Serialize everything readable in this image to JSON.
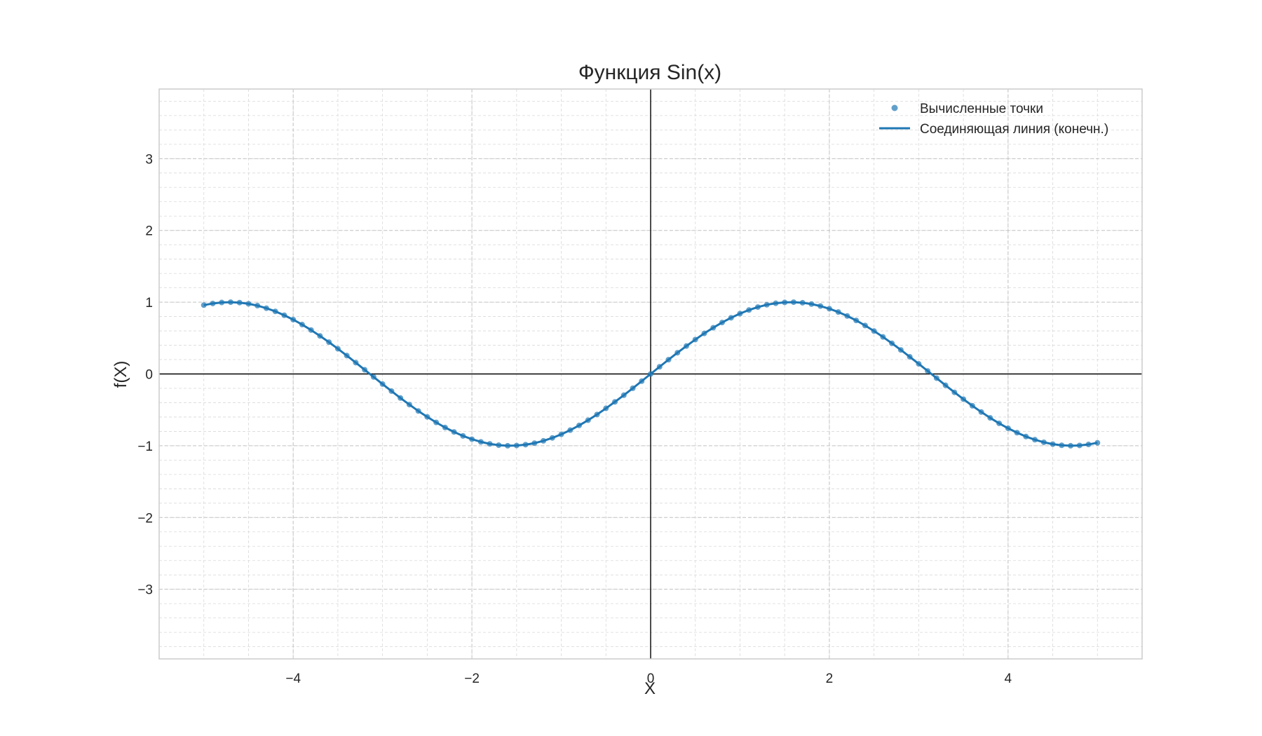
{
  "chart_data": {
    "type": "line",
    "title": "Функция Sin(x)",
    "xlabel": "X",
    "ylabel": "f(X)",
    "xlim": [
      -5.5,
      5.5
    ],
    "ylim": [
      -3.97,
      3.97
    ],
    "xticks": [
      -4,
      -2,
      0,
      2,
      4
    ],
    "xtick_labels": [
      "−4",
      "−2",
      "0",
      "2",
      "4"
    ],
    "yticks": [
      -3,
      -2,
      -1,
      0,
      1,
      2,
      3
    ],
    "ytick_labels": [
      "−3",
      "−2",
      "−1",
      "0",
      "1",
      "2",
      "3"
    ],
    "minor_grid": true,
    "major_grid": true,
    "axes_lines_at_zero": true,
    "legend_position": "top-right",
    "colors": {
      "series": "#1f77b4",
      "axes_zero": "#000000",
      "grid": "#cccccc"
    },
    "series": [
      {
        "name": "Вычисленные точки",
        "kind": "scatter",
        "x": [
          -5.0,
          -4.9,
          -4.8,
          -4.7,
          -4.6,
          -4.5,
          -4.4,
          -4.3,
          -4.2,
          -4.1,
          -4.0,
          -3.9,
          -3.8,
          -3.7,
          -3.6,
          -3.5,
          -3.4,
          -3.3,
          -3.2,
          -3.1,
          -3.0,
          -2.9,
          -2.8,
          -2.7,
          -2.6,
          -2.5,
          -2.4,
          -2.3,
          -2.2,
          -2.1,
          -2.0,
          -1.9,
          -1.8,
          -1.7,
          -1.6,
          -1.5,
          -1.4,
          -1.3,
          -1.2,
          -1.1,
          -1.0,
          -0.9,
          -0.8,
          -0.7,
          -0.6,
          -0.5,
          -0.4,
          -0.3,
          -0.2,
          -0.1,
          0.0,
          0.1,
          0.2,
          0.3,
          0.4,
          0.5,
          0.6,
          0.7,
          0.8,
          0.9,
          1.0,
          1.1,
          1.2,
          1.3,
          1.4,
          1.5,
          1.6,
          1.7,
          1.8,
          1.9,
          2.0,
          2.1,
          2.2,
          2.3,
          2.4,
          2.5,
          2.6,
          2.7,
          2.8,
          2.9,
          3.0,
          3.1,
          3.2,
          3.3,
          3.4,
          3.5,
          3.6,
          3.7,
          3.8,
          3.9,
          4.0,
          4.1,
          4.2,
          4.3,
          4.4,
          4.5,
          4.6,
          4.7,
          4.8,
          4.9,
          5.0
        ],
        "y": [
          0.959,
          0.982,
          0.996,
          1.0,
          0.994,
          0.978,
          0.952,
          0.916,
          0.872,
          0.818,
          0.757,
          0.688,
          0.612,
          0.53,
          0.443,
          0.351,
          0.256,
          0.158,
          0.058,
          -0.042,
          -0.141,
          -0.239,
          -0.335,
          -0.427,
          -0.516,
          -0.598,
          -0.675,
          -0.746,
          -0.808,
          -0.863,
          -0.909,
          -0.946,
          -0.974,
          -0.992,
          -1.0,
          -0.997,
          -0.985,
          -0.964,
          -0.932,
          -0.891,
          -0.841,
          -0.783,
          -0.717,
          -0.644,
          -0.565,
          -0.479,
          -0.389,
          -0.296,
          -0.199,
          -0.1,
          0.0,
          0.1,
          0.199,
          0.296,
          0.389,
          0.479,
          0.565,
          0.644,
          0.717,
          0.783,
          0.841,
          0.891,
          0.932,
          0.964,
          0.985,
          0.997,
          1.0,
          0.992,
          0.974,
          0.946,
          0.909,
          0.863,
          0.808,
          0.746,
          0.675,
          0.598,
          0.516,
          0.427,
          0.335,
          0.239,
          0.141,
          0.042,
          -0.058,
          -0.158,
          -0.256,
          -0.351,
          -0.443,
          -0.53,
          -0.612,
          -0.688,
          -0.757,
          -0.818,
          -0.872,
          -0.916,
          -0.952,
          -0.978,
          -0.994,
          -1.0,
          -0.996,
          -0.982,
          -0.959
        ]
      },
      {
        "name": "Соединяющая линия (конечн.)",
        "kind": "line",
        "x": [
          -5.0,
          -4.9,
          -4.8,
          -4.7,
          -4.6,
          -4.5,
          -4.4,
          -4.3,
          -4.2,
          -4.1,
          -4.0,
          -3.9,
          -3.8,
          -3.7,
          -3.6,
          -3.5,
          -3.4,
          -3.3,
          -3.2,
          -3.1,
          -3.0,
          -2.9,
          -2.8,
          -2.7,
          -2.6,
          -2.5,
          -2.4,
          -2.3,
          -2.2,
          -2.1,
          -2.0,
          -1.9,
          -1.8,
          -1.7,
          -1.6,
          -1.5,
          -1.4,
          -1.3,
          -1.2,
          -1.1,
          -1.0,
          -0.9,
          -0.8,
          -0.7,
          -0.6,
          -0.5,
          -0.4,
          -0.3,
          -0.2,
          -0.1,
          0.0,
          0.1,
          0.2,
          0.3,
          0.4,
          0.5,
          0.6,
          0.7,
          0.8,
          0.9,
          1.0,
          1.1,
          1.2,
          1.3,
          1.4,
          1.5,
          1.6,
          1.7,
          1.8,
          1.9,
          2.0,
          2.1,
          2.2,
          2.3,
          2.4,
          2.5,
          2.6,
          2.7,
          2.8,
          2.9,
          3.0,
          3.1,
          3.2,
          3.3,
          3.4,
          3.5,
          3.6,
          3.7,
          3.8,
          3.9,
          4.0,
          4.1,
          4.2,
          4.3,
          4.4,
          4.5,
          4.6,
          4.7,
          4.8,
          4.9,
          5.0
        ],
        "y": [
          0.959,
          0.982,
          0.996,
          1.0,
          0.994,
          0.978,
          0.952,
          0.916,
          0.872,
          0.818,
          0.757,
          0.688,
          0.612,
          0.53,
          0.443,
          0.351,
          0.256,
          0.158,
          0.058,
          -0.042,
          -0.141,
          -0.239,
          -0.335,
          -0.427,
          -0.516,
          -0.598,
          -0.675,
          -0.746,
          -0.808,
          -0.863,
          -0.909,
          -0.946,
          -0.974,
          -0.992,
          -1.0,
          -0.997,
          -0.985,
          -0.964,
          -0.932,
          -0.891,
          -0.841,
          -0.783,
          -0.717,
          -0.644,
          -0.565,
          -0.479,
          -0.389,
          -0.296,
          -0.199,
          -0.1,
          0.0,
          0.1,
          0.199,
          0.296,
          0.389,
          0.479,
          0.565,
          0.644,
          0.717,
          0.783,
          0.841,
          0.891,
          0.932,
          0.964,
          0.985,
          0.997,
          1.0,
          0.992,
          0.974,
          0.946,
          0.909,
          0.863,
          0.808,
          0.746,
          0.675,
          0.598,
          0.516,
          0.427,
          0.335,
          0.239,
          0.141,
          0.042,
          -0.058,
          -0.158,
          -0.256,
          -0.351,
          -0.443,
          -0.53,
          -0.612,
          -0.688,
          -0.757,
          -0.818,
          -0.872,
          -0.916,
          -0.952,
          -0.978,
          -0.994,
          -1.0,
          -0.996,
          -0.982,
          -0.959
        ]
      }
    ]
  }
}
